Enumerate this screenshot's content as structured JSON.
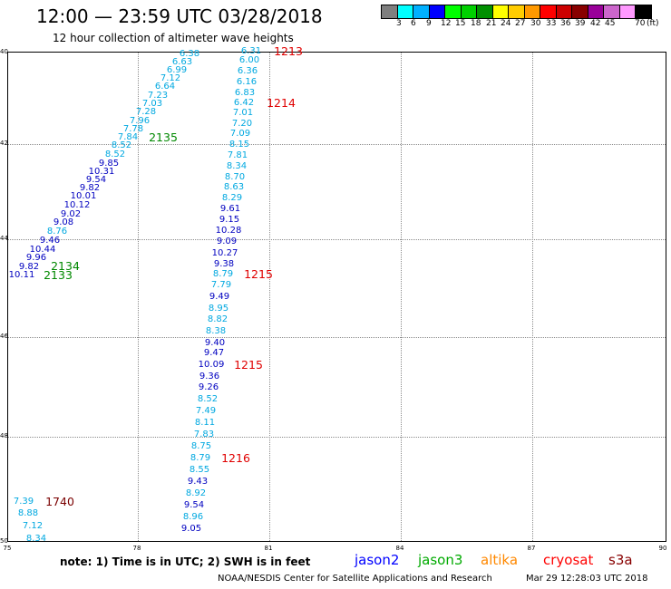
{
  "header": {
    "title": "12:00 — 23:59 UTC 03/28/2018",
    "subtitle": "12 hour collection of altimeter wave heights"
  },
  "colorbar": {
    "colors": [
      "#7f7f7f",
      "#00ffff",
      "#00b0ff",
      "#0000ff",
      "#00ff00",
      "#00d000",
      "#009000",
      "#ffff00",
      "#ffcc00",
      "#ff9900",
      "#ff0000",
      "#cc0000",
      "#880000",
      "#990099",
      "#cc66cc",
      "#ff99ff",
      "#000000"
    ],
    "labels": [
      "3",
      "6",
      "9",
      "12",
      "15",
      "18",
      "21",
      "24",
      "27",
      "30",
      "33",
      "36",
      "39",
      "42",
      "45",
      "70"
    ],
    "units": "(ft)"
  },
  "map": {
    "lat_labels": [
      "40",
      "42",
      "44",
      "46",
      "48",
      "50"
    ],
    "lon_labels": [
      "75",
      "78",
      "81",
      "84",
      "87",
      "90"
    ],
    "pass_labels": [
      {
        "text": "1213",
        "color": "#e00000"
      },
      {
        "text": "1214",
        "color": "#e00000"
      },
      {
        "text": "2135",
        "color": "#008800"
      },
      {
        "text": "2134",
        "color": "#008800"
      },
      {
        "text": "2133",
        "color": "#008800"
      },
      {
        "text": "1215",
        "color": "#e00000"
      },
      {
        "text": "1215",
        "color": "#e00000"
      },
      {
        "text": "1216",
        "color": "#e00000"
      },
      {
        "text": "1740",
        "color": "#7a0000"
      }
    ],
    "wave_heights": [
      {
        "value": "6.38",
        "color": "#00a8e0"
      },
      {
        "value": "6.63",
        "color": "#00a8e0"
      },
      {
        "value": "6.99",
        "color": "#00a8e0"
      },
      {
        "value": "7.12",
        "color": "#00a8e0"
      },
      {
        "value": "6.64",
        "color": "#00a8e0"
      },
      {
        "value": "7.23",
        "color": "#00a8e0"
      },
      {
        "value": "7.03",
        "color": "#00a8e0"
      },
      {
        "value": "7.28",
        "color": "#00a8e0"
      },
      {
        "value": "7.96",
        "color": "#00a8e0"
      },
      {
        "value": "7.78",
        "color": "#00a8e0"
      },
      {
        "value": "7.84",
        "color": "#00a8e0"
      },
      {
        "value": "8.52",
        "color": "#00a8e0"
      },
      {
        "value": "8.52",
        "color": "#00a8e0"
      },
      {
        "value": "9.85",
        "color": "#0000c0"
      },
      {
        "value": "10.31",
        "color": "#0000c0"
      },
      {
        "value": "9.54",
        "color": "#0000c0"
      },
      {
        "value": "9.82",
        "color": "#0000c0"
      },
      {
        "value": "10.01",
        "color": "#0000c0"
      },
      {
        "value": "10.12",
        "color": "#0000c0"
      },
      {
        "value": "9.02",
        "color": "#0000c0"
      },
      {
        "value": "9.08",
        "color": "#0000c0"
      },
      {
        "value": "8.76",
        "color": "#00a8e0"
      },
      {
        "value": "9.46",
        "color": "#0000c0"
      },
      {
        "value": "10.44",
        "color": "#0000c0"
      },
      {
        "value": "9.96",
        "color": "#0000c0"
      },
      {
        "value": "9.82",
        "color": "#0000c0"
      },
      {
        "value": "10.11",
        "color": "#0000c0"
      },
      {
        "value": "6.31",
        "color": "#00a8e0"
      },
      {
        "value": "6.00",
        "color": "#00a8e0"
      },
      {
        "value": "6.36",
        "color": "#00a8e0"
      },
      {
        "value": "6.16",
        "color": "#00a8e0"
      },
      {
        "value": "6.83",
        "color": "#00a8e0"
      },
      {
        "value": "6.42",
        "color": "#00a8e0"
      },
      {
        "value": "7.01",
        "color": "#00a8e0"
      },
      {
        "value": "7.20",
        "color": "#00a8e0"
      },
      {
        "value": "7.09",
        "color": "#00a8e0"
      },
      {
        "value": "8.15",
        "color": "#00a8e0"
      },
      {
        "value": "7.81",
        "color": "#00a8e0"
      },
      {
        "value": "8.34",
        "color": "#00a8e0"
      },
      {
        "value": "8.70",
        "color": "#00a8e0"
      },
      {
        "value": "8.63",
        "color": "#00a8e0"
      },
      {
        "value": "8.29",
        "color": "#00a8e0"
      },
      {
        "value": "9.61",
        "color": "#0000c0"
      },
      {
        "value": "9.15",
        "color": "#0000c0"
      },
      {
        "value": "10.28",
        "color": "#0000c0"
      },
      {
        "value": "9.09",
        "color": "#0000c0"
      },
      {
        "value": "10.27",
        "color": "#0000c0"
      },
      {
        "value": "9.38",
        "color": "#0000c0"
      },
      {
        "value": "8.79",
        "color": "#00a8e0"
      },
      {
        "value": "7.79",
        "color": "#00a8e0"
      },
      {
        "value": "9.49",
        "color": "#0000c0"
      },
      {
        "value": "8.95",
        "color": "#00a8e0"
      },
      {
        "value": "8.82",
        "color": "#00a8e0"
      },
      {
        "value": "8.38",
        "color": "#00a8e0"
      },
      {
        "value": "9.40",
        "color": "#0000c0"
      },
      {
        "value": "9.47",
        "color": "#0000c0"
      },
      {
        "value": "10.09",
        "color": "#0000c0"
      },
      {
        "value": "9.36",
        "color": "#0000c0"
      },
      {
        "value": "9.26",
        "color": "#0000c0"
      },
      {
        "value": "8.52",
        "color": "#00a8e0"
      },
      {
        "value": "7.49",
        "color": "#00a8e0"
      },
      {
        "value": "8.11",
        "color": "#00a8e0"
      },
      {
        "value": "7.83",
        "color": "#00a8e0"
      },
      {
        "value": "8.75",
        "color": "#00a8e0"
      },
      {
        "value": "8.79",
        "color": "#00a8e0"
      },
      {
        "value": "8.55",
        "color": "#00a8e0"
      },
      {
        "value": "9.43",
        "color": "#0000c0"
      },
      {
        "value": "8.92",
        "color": "#00a8e0"
      },
      {
        "value": "9.54",
        "color": "#0000c0"
      },
      {
        "value": "8.96",
        "color": "#00a8e0"
      },
      {
        "value": "9.05",
        "color": "#0000c0"
      },
      {
        "value": "7.39",
        "color": "#00a8e0"
      },
      {
        "value": "8.88",
        "color": "#00a8e0"
      },
      {
        "value": "7.12",
        "color": "#00a8e0"
      },
      {
        "value": "8.34",
        "color": "#00a8e0"
      }
    ]
  },
  "footer": {
    "note": "note:  1) Time is in UTC;  2) SWH is in feet",
    "satellites": [
      {
        "name": "jason2",
        "color": "#0000ff"
      },
      {
        "name": "jason3",
        "color": "#00aa00"
      },
      {
        "name": "altika",
        "color": "#ff8800"
      },
      {
        "name": "cryosat",
        "color": "#ff0000"
      },
      {
        "name": "s3a",
        "color": "#880000"
      }
    ],
    "credit": "NOAA/NESDIS Center for Satellite Applications and Research",
    "generated": "Mar 29 12:28:03 UTC 2018"
  }
}
